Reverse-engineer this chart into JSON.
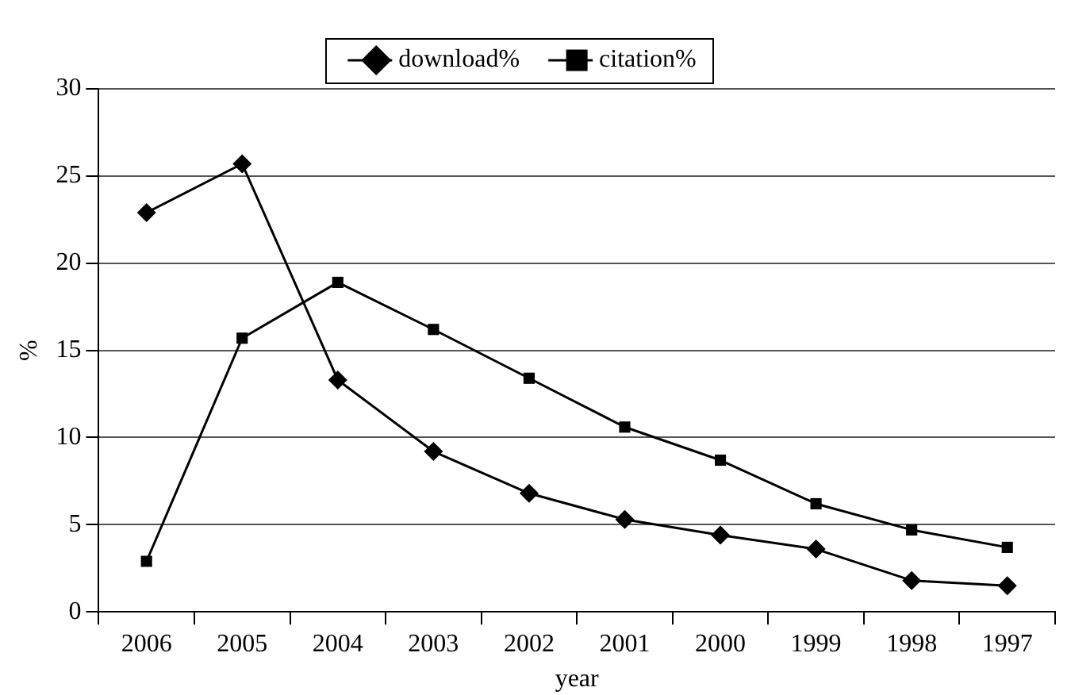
{
  "chart_data": {
    "type": "line",
    "xlabel": "year",
    "ylabel": "%",
    "categories": [
      "2006",
      "2005",
      "2004",
      "2003",
      "2002",
      "2001",
      "2000",
      "1999",
      "1998",
      "1997"
    ],
    "series": [
      {
        "name": "download%",
        "color": "#000000",
        "marker": "diamond",
        "values": [
          22.9,
          25.7,
          13.3,
          9.2,
          6.8,
          5.3,
          4.4,
          3.6,
          1.8,
          1.5
        ]
      },
      {
        "name": "citation%",
        "color": "#000000",
        "marker": "square",
        "values": [
          2.9,
          15.7,
          18.9,
          16.2,
          13.4,
          10.6,
          8.7,
          6.2,
          4.7,
          3.7
        ]
      }
    ],
    "ylim": [
      0,
      30
    ],
    "yticks": [
      0,
      5,
      10,
      15,
      20,
      25,
      30
    ],
    "grid": "y",
    "legend": "top",
    "line_style": "solid"
  }
}
